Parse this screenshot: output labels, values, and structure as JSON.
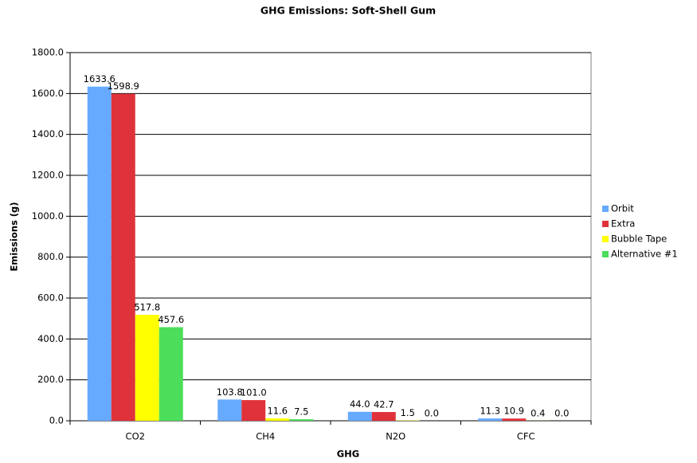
{
  "chart_data": {
    "type": "bar",
    "title": "GHG Emissions: Soft-Shell Gum",
    "x_label": "GHG",
    "y_label": "Emissions (g)",
    "categories": [
      "CO2",
      "CH4",
      "N2O",
      "CFC"
    ],
    "series": [
      {
        "name": "Orbit",
        "color": "#66aaff",
        "values": [
          1633.6,
          103.8,
          44.0,
          11.3
        ],
        "value_labels": [
          "1633.6",
          "103.8",
          "44.0",
          "11.3"
        ]
      },
      {
        "name": "Extra",
        "color": "#e0323a",
        "values": [
          1598.9,
          101.0,
          42.7,
          10.9
        ],
        "value_labels": [
          "1598.9",
          "101.0",
          "42.7",
          "10.9"
        ]
      },
      {
        "name": "Bubble Tape",
        "color": "#ffff00",
        "values": [
          517.8,
          11.6,
          1.5,
          0.4
        ],
        "value_labels": [
          "517.8",
          "11.6",
          "1.5",
          "0.4"
        ]
      },
      {
        "name": "Alternative #1",
        "color": "#4cdd5a",
        "values": [
          457.6,
          7.5,
          0.0,
          0.0
        ],
        "value_labels": [
          "457.6",
          "7.5",
          "0.0",
          "0.0"
        ]
      }
    ],
    "ylim": [
      0,
      1800
    ],
    "yticks": [
      {
        "value": 0,
        "label": "0.0"
      },
      {
        "value": 200,
        "label": "200.0"
      },
      {
        "value": 400,
        "label": "400.0"
      },
      {
        "value": 600,
        "label": "600.0"
      },
      {
        "value": 800,
        "label": "800.0"
      },
      {
        "value": 1000,
        "label": "1000.0"
      },
      {
        "value": 1200,
        "label": "1200.0"
      },
      {
        "value": 1400,
        "label": "1400.0"
      },
      {
        "value": 1600,
        "label": "1600.0"
      },
      {
        "value": 1800,
        "label": "1800.0"
      }
    ],
    "grid": true,
    "legend": "right"
  }
}
